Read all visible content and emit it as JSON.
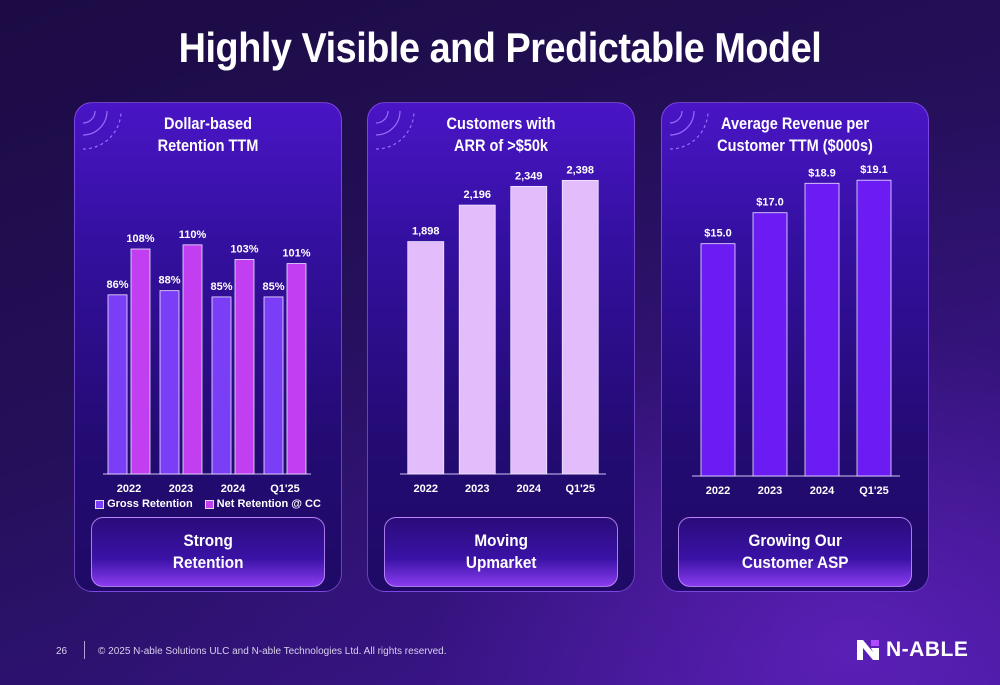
{
  "title": "Highly Visible and Predictable Model",
  "cards": [
    {
      "title_line1": "Dollar-based",
      "title_line2": "Retention TTM",
      "pill": "Strong\nRetention"
    },
    {
      "title_line1": "Customers with",
      "title_line2": "ARR of >$50k",
      "pill": "Moving\nUpmarket"
    },
    {
      "title_line1": "Average Revenue per",
      "title_line2": "Customer TTM ($000s)",
      "pill": "Growing Our\nCustomer ASP"
    }
  ],
  "chart_data": [
    {
      "type": "bar",
      "title": "Dollar-based Retention TTM",
      "categories": [
        "2022",
        "2023",
        "2024",
        "Q1'25"
      ],
      "series": [
        {
          "name": "Gross Retention",
          "values": [
            86,
            88,
            85,
            85
          ],
          "labels": [
            "86%",
            "88%",
            "85%",
            "85%"
          ],
          "color": "#7b3ef7"
        },
        {
          "name": "Net Retention @ CC",
          "values": [
            108,
            110,
            103,
            101
          ],
          "labels": [
            "108%",
            "110%",
            "103%",
            "101%"
          ],
          "color": "#c13ff0"
        }
      ],
      "ylim": [
        0,
        120
      ],
      "legend": "bottom"
    },
    {
      "type": "bar",
      "title": "Customers with ARR of >$50k",
      "categories": [
        "2022",
        "2023",
        "2024",
        "Q1'25"
      ],
      "series": [
        {
          "values": [
            1898,
            2196,
            2349,
            2398
          ],
          "labels": [
            "1,898",
            "2,196",
            "2,349",
            "2,398"
          ],
          "color": "#e3bdfb"
        }
      ],
      "ylim": [
        0,
        2450
      ]
    },
    {
      "type": "bar",
      "title": "Average Revenue per Customer TTM ($000s)",
      "categories": [
        "2022",
        "2023",
        "2024",
        "Q1'25"
      ],
      "series": [
        {
          "values": [
            15.0,
            17.0,
            18.9,
            19.1
          ],
          "labels": [
            "$15.0",
            "$17.0",
            "$18.9",
            "$19.1"
          ],
          "color": "#6a1cf2"
        }
      ],
      "ylim": [
        0,
        19.5
      ]
    }
  ],
  "footer": {
    "page_number": "26",
    "copyright": "© 2025 N-able Solutions ULC and N-able Technologies Ltd. All rights reserved."
  },
  "logo": {
    "text": "N-ABLE",
    "icon": "n-able-logo-icon"
  }
}
